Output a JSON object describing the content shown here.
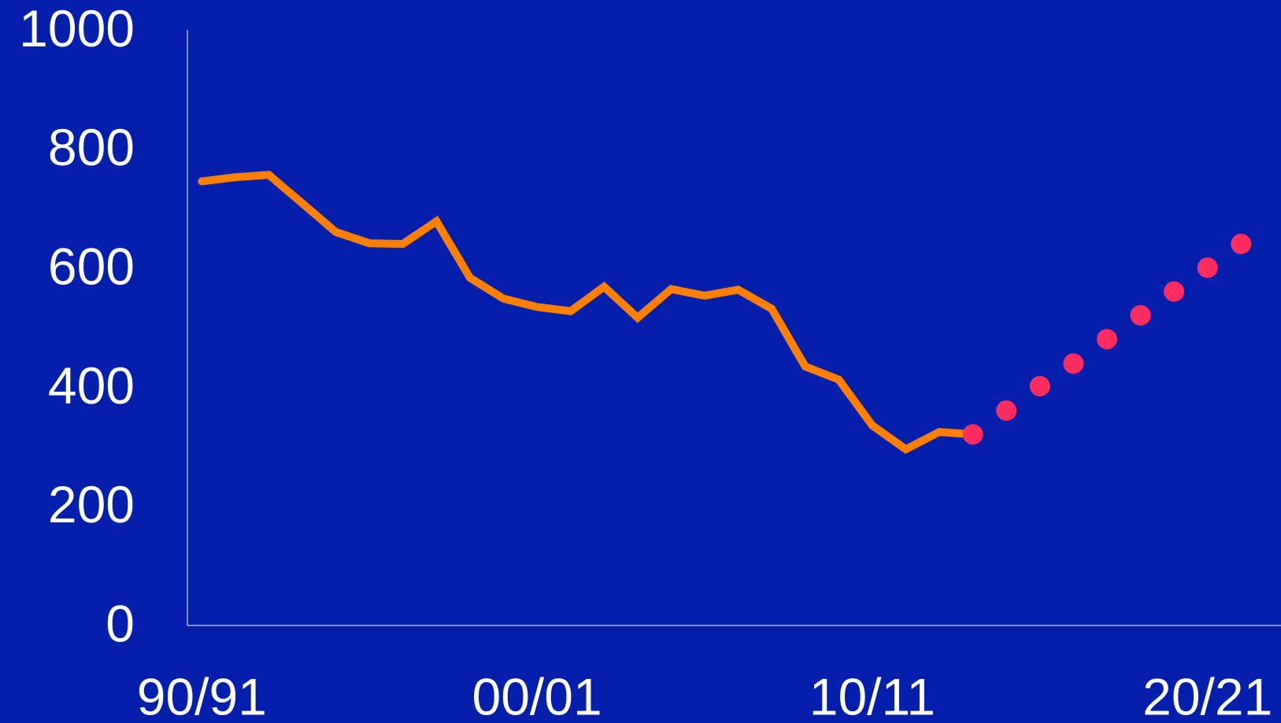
{
  "chart_data": {
    "type": "line",
    "categories": [
      "90/91",
      null,
      null,
      null,
      null,
      null,
      null,
      null,
      null,
      null,
      "00/01",
      null,
      null,
      null,
      null,
      null,
      null,
      null,
      null,
      null,
      "10/11",
      null,
      null,
      null,
      null,
      null,
      null,
      null,
      null,
      null,
      "20/21",
      null
    ],
    "series": [
      {
        "color": "#ff8000",
        "style": "line",
        "values": [
          746,
          753,
          757,
          709,
          661,
          642,
          641,
          679,
          584,
          549,
          535,
          528,
          569,
          517,
          565,
          554,
          564,
          532,
          435,
          413,
          336,
          296,
          325,
          321,
          null,
          null,
          null,
          null,
          null,
          null,
          null,
          null
        ]
      },
      {
        "color": "#ff2d5f",
        "style": "markers",
        "values": [
          null,
          null,
          null,
          null,
          null,
          null,
          null,
          null,
          null,
          null,
          null,
          null,
          null,
          null,
          null,
          null,
          null,
          null,
          null,
          null,
          null,
          null,
          null,
          321,
          361,
          402,
          440,
          481,
          521,
          561,
          601,
          641
        ]
      }
    ],
    "ylim": [
      0,
      1000
    ],
    "yticks": [
      0,
      200,
      400,
      600,
      800,
      1000
    ],
    "grid": false,
    "background": "#041fab"
  }
}
